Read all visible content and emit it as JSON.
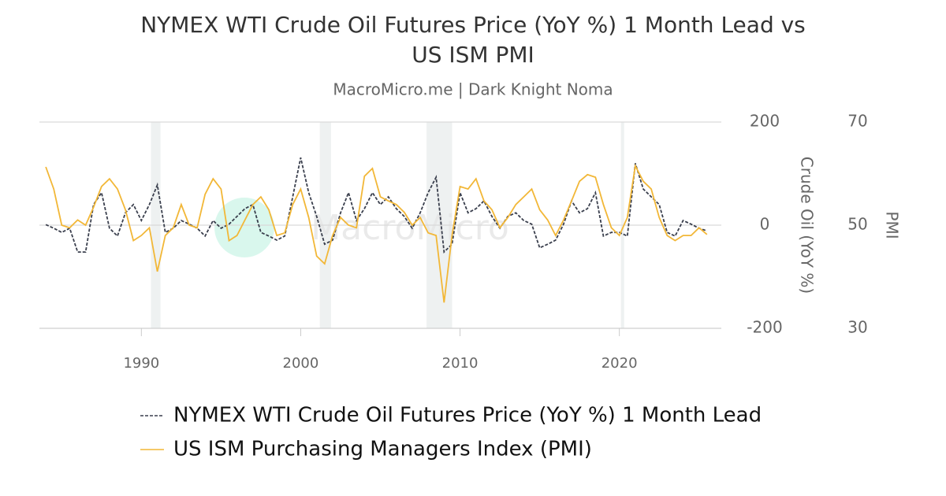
{
  "chart_data": {
    "type": "line",
    "title_lines": [
      "NYMEX WTI Crude Oil Futures Price (YoY %) 1 Month Lead vs",
      "US ISM PMI"
    ],
    "subtitle": "MacroMicro.me | Dark Knight Noma",
    "watermark": "MacroMicro",
    "y_label": "Crude Oil (YoY %)",
    "y2_label": "PMI",
    "x": [
      1984,
      1984.5,
      1985,
      1985.5,
      1986,
      1986.5,
      1987,
      1987.5,
      1988,
      1988.5,
      1989,
      1989.5,
      1990,
      1990.5,
      1991,
      1991.5,
      1992,
      1992.5,
      1993,
      1993.5,
      1994,
      1994.5,
      1995,
      1995.5,
      1996,
      1996.5,
      1997,
      1997.5,
      1998,
      1998.5,
      1999,
      1999.5,
      2000,
      2000.5,
      2001,
      2001.5,
      2002,
      2002.5,
      2003,
      2003.5,
      2004,
      2004.5,
      2005,
      2005.5,
      2006,
      2006.5,
      2007,
      2007.5,
      2008,
      2008.5,
      2009,
      2009.5,
      2010,
      2010.5,
      2011,
      2011.5,
      2012,
      2012.5,
      2013,
      2013.5,
      2014,
      2014.5,
      2015,
      2015.5,
      2016,
      2016.5,
      2017,
      2017.5,
      2018,
      2018.5,
      2019,
      2019.5,
      2020,
      2020.5,
      2021,
      2021.5,
      2022,
      2022.5,
      2023,
      2023.5,
      2024,
      2024.5,
      2025,
      2025.5
    ],
    "series": [
      {
        "name": "NYMEX WTI Crude Oil Futures Price (YoY %) 1 Month Lead",
        "color": "#3a3f4d",
        "dashed": true,
        "values": [
          1,
          -6,
          -14,
          -6,
          -52,
          -52,
          40,
          63,
          -6,
          -21,
          24,
          40,
          9,
          40,
          78,
          -14,
          -6,
          9,
          2,
          -6,
          -21,
          9,
          -6,
          2,
          17,
          32,
          40,
          -14,
          -21,
          -29,
          -21,
          55,
          131,
          63,
          17,
          -37,
          -29,
          24,
          63,
          9,
          32,
          63,
          40,
          55,
          32,
          17,
          -6,
          24,
          63,
          93,
          -52,
          -37,
          63,
          24,
          32,
          47,
          17,
          -6,
          17,
          24,
          9,
          2,
          -44,
          -37,
          -29,
          2,
          47,
          24,
          32,
          63,
          -21,
          -14,
          -14,
          -21,
          120,
          70,
          55,
          40,
          -14,
          -21,
          9,
          2,
          -6,
          -11
        ]
      },
      {
        "name": "US ISM Purchasing Managers Index (PMI)",
        "color": "#f2b737",
        "axis": "y2",
        "values": [
          61.3,
          57,
          50,
          49.5,
          51,
          50,
          53.5,
          57.5,
          59,
          57,
          53,
          47,
          48,
          49.5,
          41,
          48,
          49.5,
          54,
          50,
          49.5,
          56,
          59,
          57,
          47,
          48,
          51,
          54,
          55.5,
          53,
          48,
          48.5,
          54,
          57,
          51.5,
          44,
          42.5,
          48,
          51.5,
          50,
          49.5,
          59.5,
          61,
          55.5,
          54.7,
          54,
          52.5,
          50,
          51.5,
          48.5,
          48,
          35,
          48,
          57.5,
          57,
          59,
          54.7,
          53,
          49.5,
          51.5,
          54,
          55.5,
          57,
          53,
          51,
          48,
          51,
          54.7,
          58.5,
          59.8,
          59.3,
          54,
          49.5,
          48,
          51.5,
          61.5,
          58.5,
          57,
          51.5,
          48,
          47,
          48,
          48,
          49.5,
          48.2
        ]
      }
    ],
    "shaded_periods": [
      [
        1990.6,
        1991.2
      ],
      [
        2001.2,
        2001.9
      ],
      [
        2007.9,
        2009.5
      ],
      [
        2020.1,
        2020.3
      ]
    ],
    "xlim": [
      1983.6,
      2026.4
    ],
    "xticks": [
      1990,
      2000,
      2010,
      2020
    ],
    "ylim": [
      -200,
      200
    ],
    "yticks": [
      -200,
      0,
      200
    ],
    "y2lim": [
      30,
      70
    ],
    "y2ticks": [
      30,
      50,
      70
    ],
    "grid": true
  }
}
